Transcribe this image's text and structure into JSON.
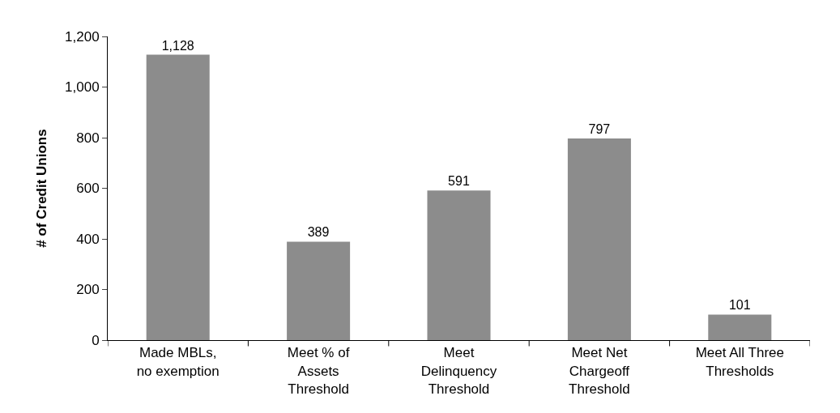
{
  "chart_data": {
    "type": "bar",
    "ylabel": "# of Credit Unions",
    "categories": [
      "Made MBLs,\nno exemption",
      "Meet % of\nAssets\nThreshold",
      "Meet\nDelinquency\nThreshold",
      "Meet Net\nChargeoff\nThreshold",
      "Meet All Three\nThresholds"
    ],
    "values": [
      1128,
      389,
      591,
      797,
      101
    ],
    "value_labels": [
      "1,128",
      "389",
      "591",
      "797",
      "101"
    ],
    "color": "#8c8c8c",
    "ylim": [
      0,
      1200
    ],
    "yticks": [
      0,
      200,
      400,
      600,
      800,
      {
        "value": 1000,
        "label": "1,000"
      },
      {
        "value": 1200,
        "label": "1,200"
      }
    ],
    "grid": false,
    "legend": false
  }
}
